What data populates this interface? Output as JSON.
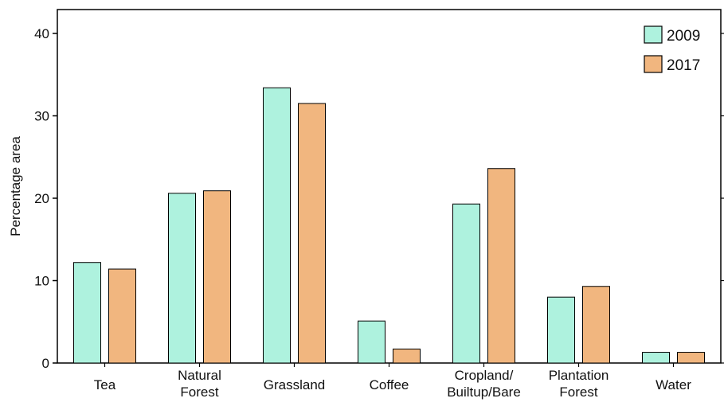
{
  "chart_data": {
    "type": "bar",
    "categories": [
      [
        "Tea"
      ],
      [
        "Natural",
        "Forest"
      ],
      [
        "Grassland"
      ],
      [
        "Coffee"
      ],
      [
        "Cropland/",
        "Builtup/Bare"
      ],
      [
        "Plantation",
        "Forest"
      ],
      [
        "Water"
      ]
    ],
    "series": [
      {
        "name": "2009",
        "color": "#aef2de",
        "values": [
          12.2,
          20.6,
          33.4,
          5.1,
          19.3,
          8.0,
          1.3
        ]
      },
      {
        "name": "2017",
        "color": "#f1b67f",
        "values": [
          11.4,
          20.9,
          31.5,
          1.7,
          23.6,
          9.3,
          1.3
        ]
      }
    ],
    "xlabel": "",
    "ylabel": "Percentage area",
    "ylim": [
      0,
      40
    ],
    "yticks": [
      "0",
      "10",
      "20",
      "30",
      "40"
    ],
    "grid": false,
    "legend_position": "top-right"
  }
}
